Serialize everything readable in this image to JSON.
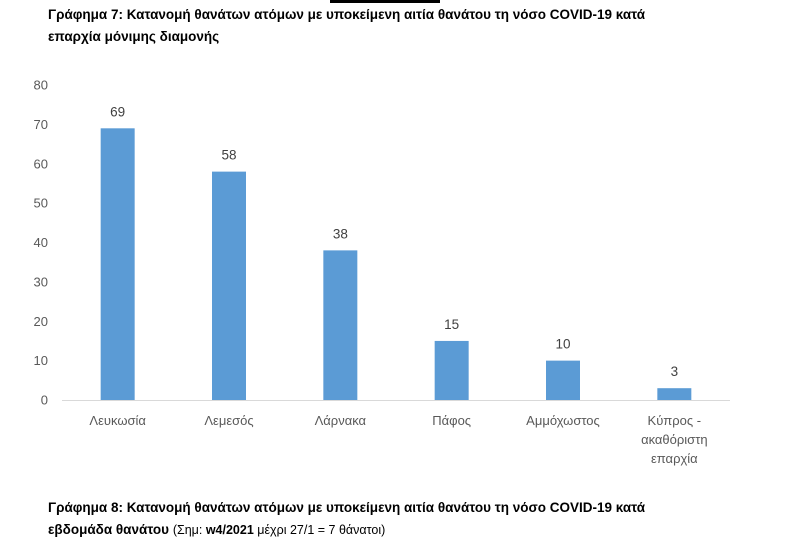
{
  "captions": {
    "chart7_line1": "Γράφημα 7: Κατανομή θανάτων ατόμων με υποκείμενη αιτία θανάτου τη νόσο COVID-19 κατά",
    "chart7_line2": "επαρχία μόνιμης διαμονής",
    "chart8_line1": "Γράφημα 8: Κατανομή θανάτων ατόμων με υποκείμενη αιτία θανάτου τη νόσο COVID-19 κατά",
    "chart8_line2_main": "εβδομάδα θανάτου",
    "chart8_line2_note_prefix": "(Σημ: ",
    "chart8_line2_note_bold": "w4/2021",
    "chart8_line2_note_suffix": " μέχρι 27/1 = 7 θάνατοι)"
  },
  "chart_data": {
    "type": "bar",
    "categories": [
      "Λευκωσία",
      "Λεμεσός",
      "Λάρνακα",
      "Πάφος",
      "Αμμόχωστος",
      "Κύπρος - ακαθόριστη επαρχία"
    ],
    "category_lines": [
      [
        "Λευκωσία"
      ],
      [
        "Λεμεσός"
      ],
      [
        "Λάρνακα"
      ],
      [
        "Πάφος"
      ],
      [
        "Αμμόχωστος"
      ],
      [
        "Κύπρος -",
        "ακαθόριστη",
        "επαρχία"
      ]
    ],
    "values": [
      69,
      58,
      38,
      15,
      10,
      3
    ],
    "ylim": [
      0,
      80
    ],
    "yticks": [
      0,
      10,
      20,
      30,
      40,
      50,
      60,
      70,
      80
    ],
    "grid": false,
    "legend": "none",
    "data_labels": true,
    "colors": {
      "bar": "#5b9bd5",
      "axis": "#d9d9d9"
    }
  }
}
